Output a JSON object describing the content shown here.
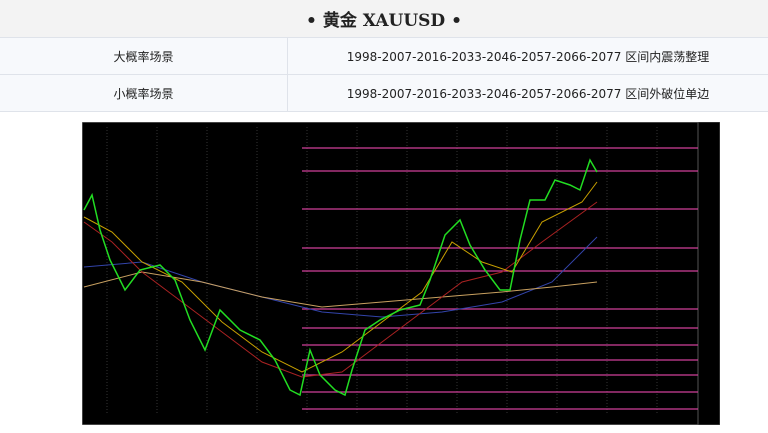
{
  "header": {
    "title": "• 黄金 XAUUSD •"
  },
  "table": {
    "rows": [
      [
        "大概率场景",
        "1998-2007-2016-2033-2046-2057-2066-2077 区间内震荡整理"
      ],
      [
        "小概率场景",
        "1998-2007-2016-2033-2046-2057-2066-2077 区间外破位单边"
      ]
    ]
  }
}
